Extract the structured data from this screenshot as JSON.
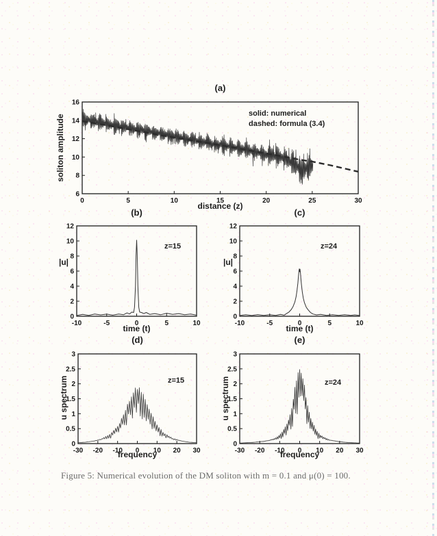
{
  "page": {
    "caption": "Figure 5: Numerical evolution of the DM soliton with m = 0.1 and μ(0) = 100.",
    "background_color": "#fdfcf8",
    "ink_color": "#1d1d1d"
  },
  "chart_data": [
    {
      "type": "line",
      "title": "(a)",
      "xlabel": "distance (z)",
      "ylabel": "soliton amplitude",
      "xlim": [
        0,
        30
      ],
      "ylim": [
        6,
        16
      ],
      "xticks": [
        0,
        5,
        10,
        15,
        20,
        25,
        30
      ],
      "yticks": [
        6,
        8,
        10,
        12,
        14,
        16
      ],
      "legend": [
        "solid: numerical",
        "dashed: formula (3.4)"
      ],
      "series": [
        {
          "name": "numerical",
          "style": "noisy-burst",
          "period": 0.84,
          "zmax": 25.1,
          "envelope": [
            [
              0,
              14.2,
              1.25
            ],
            [
              3,
              13.55,
              1.15
            ],
            [
              6,
              13.0,
              1.1
            ],
            [
              9,
              12.45,
              1.1
            ],
            [
              12,
              11.85,
              1.1
            ],
            [
              15,
              11.3,
              1.1
            ],
            [
              18,
              10.75,
              1.2
            ],
            [
              20,
              10.3,
              1.3
            ],
            [
              22,
              9.9,
              1.5
            ],
            [
              23,
              9.2,
              1.9
            ],
            [
              24,
              8.6,
              2.1
            ],
            [
              25,
              9.0,
              1.8
            ]
          ]
        },
        {
          "name": "formula-3.4",
          "style": "dashed",
          "points": [
            [
              0,
              13.9
            ],
            [
              3,
              13.4
            ],
            [
              6,
              12.85
            ],
            [
              9,
              12.3
            ],
            [
              12,
              11.8
            ],
            [
              15,
              11.3
            ],
            [
              18,
              10.75
            ],
            [
              21,
              10.2
            ],
            [
              24,
              9.65
            ],
            [
              25,
              9.5
            ],
            [
              27,
              9.1
            ],
            [
              30,
              8.4
            ]
          ]
        }
      ]
    },
    {
      "type": "line",
      "title": "(b)",
      "xlabel": "time (t)",
      "ylabel": "|u|",
      "annotation": "z=15",
      "xlim": [
        -10,
        10
      ],
      "ylim": [
        0,
        12
      ],
      "xticks": [
        -10,
        -5,
        0,
        5,
        10
      ],
      "yticks": [
        0,
        2,
        4,
        6,
        8,
        10,
        12
      ],
      "series": [
        {
          "name": "pulse-z15",
          "style": "line",
          "points": [
            [
              -10,
              0.1
            ],
            [
              -9,
              0.25
            ],
            [
              -8,
              0.12
            ],
            [
              -7,
              0.3
            ],
            [
              -6,
              0.18
            ],
            [
              -5,
              0.28
            ],
            [
              -4,
              0.15
            ],
            [
              -3,
              0.3
            ],
            [
              -2.2,
              0.2
            ],
            [
              -1.6,
              0.45
            ],
            [
              -1.2,
              0.3
            ],
            [
              -0.8,
              0.55
            ],
            [
              -0.5,
              0.5
            ],
            [
              -0.35,
              1.2
            ],
            [
              -0.2,
              4.0
            ],
            [
              -0.1,
              8.0
            ],
            [
              0,
              10.1
            ],
            [
              0.1,
              8.0
            ],
            [
              0.2,
              4.0
            ],
            [
              0.35,
              1.2
            ],
            [
              0.5,
              0.55
            ],
            [
              0.8,
              0.5
            ],
            [
              1.2,
              0.35
            ],
            [
              1.6,
              0.5
            ],
            [
              2.2,
              0.25
            ],
            [
              3,
              0.35
            ],
            [
              4,
              0.2
            ],
            [
              5,
              0.4
            ],
            [
              6,
              0.25
            ],
            [
              7,
              0.35
            ],
            [
              8,
              0.2
            ],
            [
              9,
              0.3
            ],
            [
              10,
              0.15
            ]
          ]
        }
      ]
    },
    {
      "type": "line",
      "title": "(c)",
      "xlabel": "time (t)",
      "ylabel": "|u|",
      "annotation": "z=24",
      "xlim": [
        -10,
        10
      ],
      "ylim": [
        0,
        12
      ],
      "xticks": [
        -10,
        -5,
        0,
        5,
        10
      ],
      "yticks": [
        0,
        2,
        4,
        6,
        8,
        10,
        12
      ],
      "series": [
        {
          "name": "pulse-z24",
          "style": "line",
          "points": [
            [
              -10,
              0.1
            ],
            [
              -9,
              0.2
            ],
            [
              -8,
              0.1
            ],
            [
              -7,
              0.22
            ],
            [
              -6,
              0.12
            ],
            [
              -5,
              0.2
            ],
            [
              -4,
              0.12
            ],
            [
              -3.2,
              0.25
            ],
            [
              -2.6,
              0.15
            ],
            [
              -2.2,
              0.35
            ],
            [
              -1.8,
              0.55
            ],
            [
              -1.4,
              0.9
            ],
            [
              -1.1,
              1.3
            ],
            [
              -0.8,
              1.9
            ],
            [
              -0.6,
              2.6
            ],
            [
              -0.45,
              3.4
            ],
            [
              -0.3,
              4.4
            ],
            [
              -0.2,
              5.4
            ],
            [
              -0.12,
              6.0
            ],
            [
              -0.06,
              6.3
            ],
            [
              0,
              5.9
            ],
            [
              0.06,
              6.25
            ],
            [
              0.12,
              5.8
            ],
            [
              0.2,
              5.0
            ],
            [
              0.3,
              4.2
            ],
            [
              0.45,
              3.2
            ],
            [
              0.6,
              2.4
            ],
            [
              0.8,
              1.8
            ],
            [
              1.1,
              1.2
            ],
            [
              1.4,
              0.85
            ],
            [
              1.8,
              0.5
            ],
            [
              2.2,
              0.3
            ],
            [
              2.8,
              0.18
            ],
            [
              3.5,
              0.25
            ],
            [
              4.5,
              0.12
            ],
            [
              5.5,
              0.2
            ],
            [
              6.5,
              0.12
            ],
            [
              7.5,
              0.2
            ],
            [
              8.5,
              0.12
            ],
            [
              9.2,
              0.18
            ],
            [
              10,
              0.1
            ]
          ]
        }
      ]
    },
    {
      "type": "line",
      "title": "(d)",
      "xlabel": "frequency",
      "ylabel": "u spectrum",
      "annotation": "z=15",
      "xlim": [
        -30,
        30
      ],
      "ylim": [
        0,
        3
      ],
      "xticks": [
        -30,
        -20,
        -10,
        0,
        10,
        20,
        30
      ],
      "yticks": [
        0,
        0.5,
        1,
        1.5,
        2,
        2.5,
        3
      ],
      "series": [
        {
          "name": "spectrum-z15",
          "style": "spiky",
          "comb_period": 1.0,
          "comb_depth": 0.55,
          "envelope": [
            [
              -30,
              0.03
            ],
            [
              -26,
              0.05
            ],
            [
              -22,
              0.09
            ],
            [
              -18,
              0.17
            ],
            [
              -15,
              0.28
            ],
            [
              -13,
              0.38
            ],
            [
              -11,
              0.52
            ],
            [
              -9,
              0.72
            ],
            [
              -7,
              1.0
            ],
            [
              -5,
              1.35
            ],
            [
              -3,
              1.65
            ],
            [
              -1.5,
              1.85
            ],
            [
              0,
              1.95
            ],
            [
              1.5,
              1.9
            ],
            [
              3,
              1.7
            ],
            [
              5,
              1.4
            ],
            [
              7,
              1.05
            ],
            [
              9,
              0.75
            ],
            [
              11,
              0.55
            ],
            [
              13,
              0.4
            ],
            [
              15,
              0.3
            ],
            [
              18,
              0.18
            ],
            [
              22,
              0.1
            ],
            [
              26,
              0.05
            ],
            [
              30,
              0.03
            ]
          ]
        }
      ]
    },
    {
      "type": "line",
      "title": "(e)",
      "xlabel": "frequency",
      "ylabel": "u spectrum",
      "annotation": "z=24",
      "xlim": [
        -30,
        30
      ],
      "ylim": [
        0,
        3
      ],
      "xticks": [
        -30,
        -20,
        -10,
        0,
        10,
        20,
        30
      ],
      "yticks": [
        0,
        0.5,
        1,
        1.5,
        2,
        2.5,
        3
      ],
      "series": [
        {
          "name": "spectrum-z24",
          "style": "spiky",
          "comb_period": 0.8,
          "comb_depth": 0.6,
          "envelope": [
            [
              -30,
              0.02
            ],
            [
              -26,
              0.03
            ],
            [
              -22,
              0.05
            ],
            [
              -18,
              0.08
            ],
            [
              -15,
              0.12
            ],
            [
              -12,
              0.2
            ],
            [
              -10,
              0.3
            ],
            [
              -8,
              0.48
            ],
            [
              -6,
              0.75
            ],
            [
              -5,
              0.95
            ],
            [
              -4,
              1.25
            ],
            [
              -3,
              1.65
            ],
            [
              -2,
              2.1
            ],
            [
              -1,
              2.45
            ],
            [
              0,
              2.6
            ],
            [
              1,
              2.5
            ],
            [
              2,
              2.15
            ],
            [
              3,
              1.7
            ],
            [
              4,
              1.3
            ],
            [
              5,
              1.0
            ],
            [
              6,
              0.78
            ],
            [
              8,
              0.5
            ],
            [
              10,
              0.32
            ],
            [
              12,
              0.22
            ],
            [
              15,
              0.13
            ],
            [
              18,
              0.09
            ],
            [
              22,
              0.05
            ],
            [
              26,
              0.03
            ],
            [
              30,
              0.02
            ]
          ]
        }
      ]
    }
  ]
}
